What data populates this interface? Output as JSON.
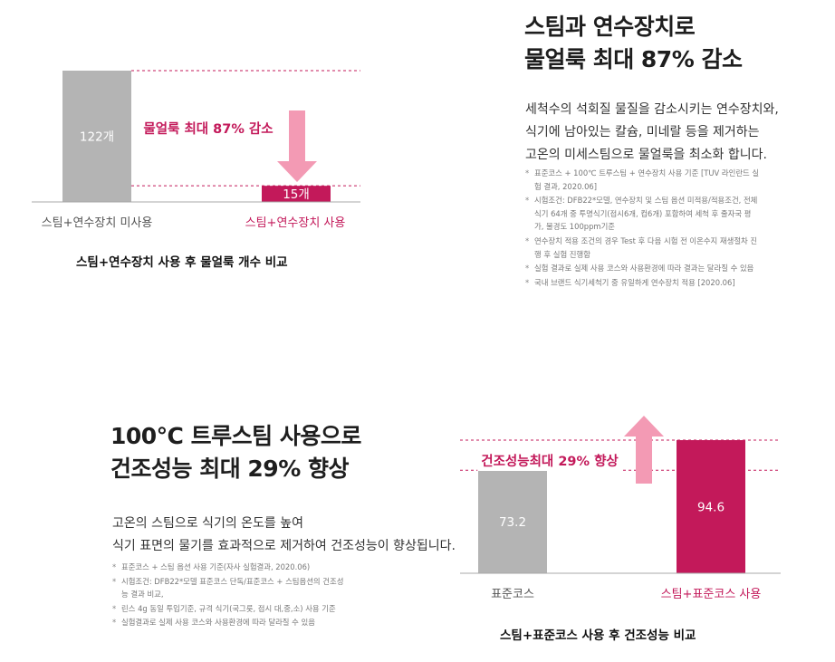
{
  "colors": {
    "gray_bar": "#b4b4b4",
    "accent": "#c3195a",
    "accent_light": "#f39ab4",
    "text_dark": "#1e1e1e",
    "text_gray": "#777777"
  },
  "section1": {
    "headline_lines": [
      "스팀과 연수장치로",
      "물얼룩 최대 87% 감소"
    ],
    "body_lines": [
      "세척수의 석회질 물질을 감소시키는 연수장치와,",
      "식기에 남아있는 칼슘, 미네랄 등을 제거하는",
      "고온의 미세스팀으로 물얼룩을 최소화 합니다."
    ],
    "notes": [
      [
        "표준코스 + 100℃ 트루스팀 + 연수장치 사용 기준 [TUV 라인란드 실",
        "험 결과, 2020.06]"
      ],
      [
        "시험조건: DFB22*모델, 연수장치 및 스팀 옵션 미적용/적용조건, 전체",
        "식기 64개 중 투명식기(접시6개, 컵6개) 포함하여 세척 후 줄자국 평",
        "가, 물경도 100ppm기준"
      ],
      [
        "연수장치 적용 조건의 경우 Test 후 다음 시험 전 이온수지 재생절차 진",
        "행 후 실험 진행함"
      ],
      [
        "실험 결과로 실제 사용 코스와 사용환경에 따라 결과는 달라질 수 있음"
      ],
      [
        "국내 브랜드 식기세척기 중 유일하게 연수장치 적용 [2020.06]"
      ]
    ]
  },
  "section2": {
    "headline_lines": [
      "100℃ 트루스팀 사용으로",
      "건조성능 최대 29% 향상"
    ],
    "body_lines": [
      "고온의 스팀으로 식기의 온도를 높여",
      "식기 표면의 물기를 효과적으로 제거하여 건조성능이 향상됩니다."
    ],
    "notes": [
      [
        "표준코스 + 스팀 옵션 사용 기준(자사 실험결과, 2020.06)"
      ],
      [
        "시험조건: DFB22*모델 표준코스 단독/표준코스 + 스팀옵션의 건조성",
        "능 결과 비교,"
      ],
      [
        "린스 4g 동일 투입기준, 규격 식기(국그릇, 접시 대,중,소) 사용 기준"
      ],
      [
        "실험결과로 실제 사용 코스와 사용환경에 따라 달라질 수 있음"
      ]
    ]
  },
  "chart_data": [
    {
      "type": "bar",
      "title": "",
      "caption": "스팀+연수장치 사용 후 물얼룩 개수 비교",
      "categories": [
        "스팀+연수장치 미사용",
        "스팀+연수장치 사용"
      ],
      "values": [
        122,
        15
      ],
      "value_labels": [
        "122개",
        "15개"
      ],
      "ylim": [
        0,
        122
      ],
      "annotation": "물얼룩 최대 87% 감소",
      "bar_colors": [
        "#b4b4b4",
        "#c3195a"
      ]
    },
    {
      "type": "bar",
      "title": "",
      "caption": "스팀+표준코스 사용 후 건조성능 비교",
      "categories": [
        "표준코스",
        "스팀+표준코스 사용"
      ],
      "values": [
        73.2,
        94.6
      ],
      "value_labels": [
        "73.2",
        "94.6"
      ],
      "ylim": [
        0,
        94.6
      ],
      "annotation": "건조성능최대 29% 향상",
      "bar_colors": [
        "#b4b4b4",
        "#c3195a"
      ]
    }
  ]
}
